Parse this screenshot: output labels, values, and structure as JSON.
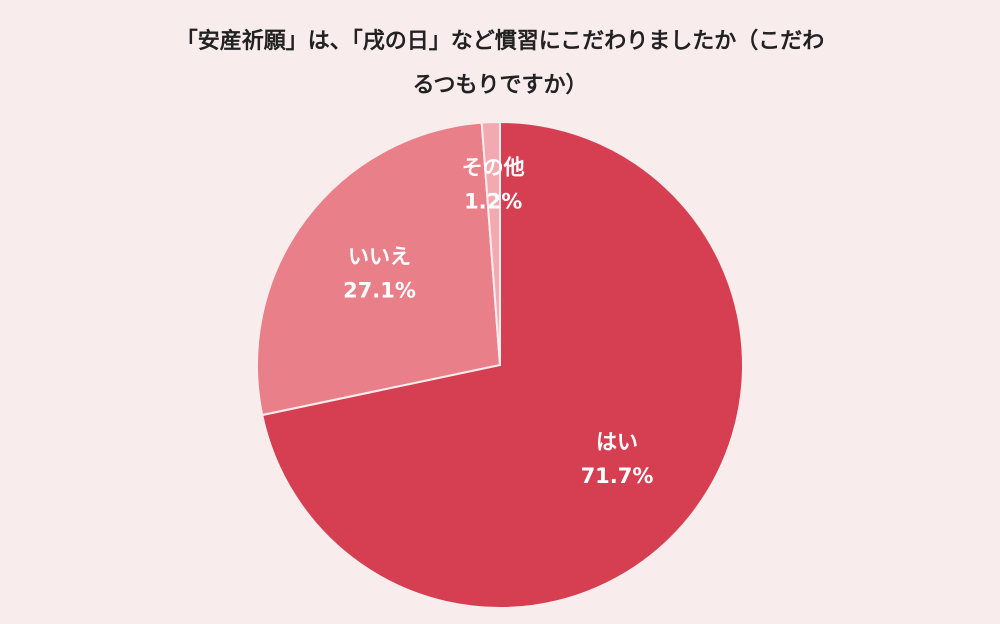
{
  "chart_data": {
    "type": "pie",
    "title_lines": [
      "「安産祈願」は、「戌の日」など慣習にこだわりましたか（こだわ",
      "るつもりですか）"
    ],
    "slices": [
      {
        "label": "はい",
        "value": 71.7,
        "value_text": "71.7%",
        "color": "#d63f52"
      },
      {
        "label": "いいえ",
        "value": 27.1,
        "value_text": "27.1%",
        "color": "#e98089"
      },
      {
        "label": "その他",
        "value": 1.2,
        "value_text": "1.2%",
        "color": "#f2a9b0"
      }
    ],
    "start": "top",
    "direction": "clockwise",
    "legend": "none"
  },
  "colors": {
    "background": "#f9eced",
    "slice_stroke": "#f9eced",
    "label_text": "#ffffff",
    "title_text": "#222222"
  }
}
